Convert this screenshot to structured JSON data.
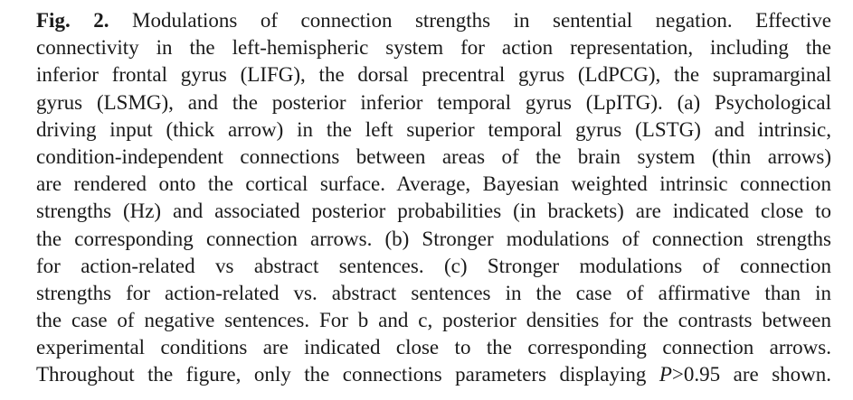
{
  "caption": {
    "fig_label": "Fig. 2.",
    "lines": [
      "Modulations of connection strengths in sentential negation. Effective",
      "connectivity in the left-hemispheric system for action representation, including the",
      "inferior frontal gyrus (LIFG), the dorsal precentral gyrus (LdPCG), the supramarginal",
      "gyrus (LSMG), and the posterior inferior temporal gyrus (LpITG). (a) Psychological",
      "driving input (thick arrow) in the left superior temporal gyrus (LSTG) and intrinsic,",
      "condition-independent connections between areas of the brain system (thin arrows)",
      "are rendered onto the cortical surface. Average, Bayesian weighted intrinsic connection",
      "strengths (Hz) and associated posterior probabilities (in brackets) are indicated close to",
      "the corresponding connection arrows. (b) Stronger modulations of connection strengths",
      "for action-related vs abstract sentences. (c) Stronger modulations of connection",
      "strengths for action-related vs. abstract sentences in the case of affirmative than in",
      "the case of negative sentences. For b and c, posterior densities for the contrasts between",
      "experimental conditions are indicated close to the corresponding connection arrows."
    ],
    "last_line_before": "Throughout the figure, only the connections parameters displaying",
    "last_line_symbol": "P",
    "last_line_after": ">0.95 are shown."
  }
}
